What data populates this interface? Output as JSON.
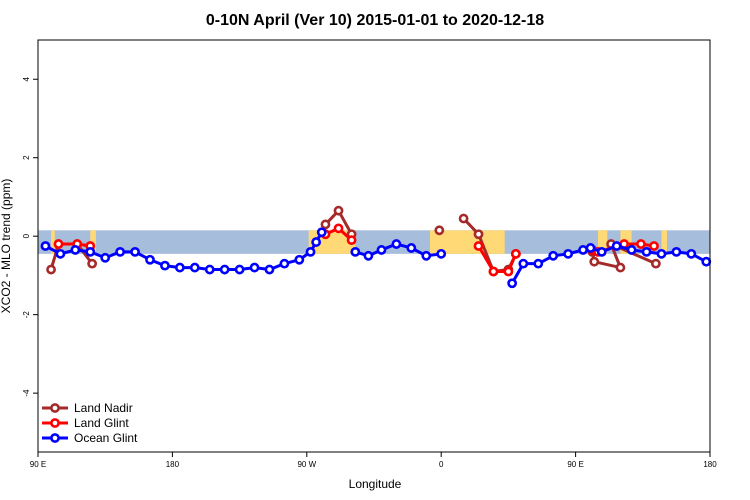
{
  "chart_data": {
    "type": "line",
    "title": "0-10N April (Ver 10)   2015-01-01 to 2020-12-18",
    "xlabel": "Longitude",
    "ylabel": "XCO2 - MLO trend (ppm)",
    "xlim": [
      90,
      450
    ],
    "ylim": [
      -5.5,
      5.0
    ],
    "x_ticks": [
      {
        "value": 90,
        "label": "90 E"
      },
      {
        "value": 162,
        "label": "180"
      },
      {
        "value": 234,
        "label": "90 W"
      },
      {
        "value": 306,
        "label": "0"
      },
      {
        "value": 378,
        "label": "90 E"
      },
      {
        "value": 450,
        "label": "180"
      }
    ],
    "y_ticks": [
      -4,
      -2,
      0,
      2,
      4
    ],
    "band": {
      "y_min": -0.45,
      "y_max": 0.15,
      "color": "#a6bddb",
      "land_color": "#fed976"
    },
    "land_segments": [
      [
        97,
        99
      ],
      [
        118,
        121
      ],
      [
        235,
        260
      ],
      [
        300,
        340
      ],
      [
        390,
        395
      ],
      [
        402,
        408
      ],
      [
        424,
        427
      ]
    ],
    "series": [
      {
        "name": "Land Nadir",
        "color": "#a52a2a",
        "segments": [
          [
            [
              97,
              -0.85
            ],
            [
              101,
              -0.2
            ],
            [
              111,
              -0.2
            ],
            [
              119,
              -0.7
            ]
          ],
          [
            [
              244,
              0.3
            ],
            [
              251,
              0.65
            ],
            [
              258,
              0.05
            ]
          ],
          [
            [
              305,
              0.15
            ]
          ],
          [
            [
              318,
              0.45
            ],
            [
              326,
              0.05
            ],
            [
              334,
              -0.9
            ],
            [
              342,
              -0.85
            ],
            [
              346,
              -0.45
            ]
          ],
          [
            [
              387,
              -0.4
            ],
            [
              388,
              -0.65
            ],
            [
              402,
              -0.8
            ],
            [
              397,
              -0.2
            ],
            [
              421,
              -0.7
            ]
          ]
        ]
      },
      {
        "name": "Land Glint",
        "color": "#ff0000",
        "segments": [
          [
            [
              101,
              -0.2
            ],
            [
              111,
              -0.2
            ],
            [
              118,
              -0.25
            ]
          ],
          [
            [
              244,
              0.05
            ],
            [
              251,
              0.2
            ],
            [
              258,
              -0.1
            ]
          ],
          [
            [
              326,
              -0.25
            ],
            [
              334,
              -0.9
            ],
            [
              342,
              -0.9
            ],
            [
              346,
              -0.45
            ]
          ],
          [
            [
              387,
              -0.35
            ],
            [
              390,
              -0.4
            ],
            [
              404,
              -0.2
            ],
            [
              413,
              -0.2
            ],
            [
              420,
              -0.25
            ]
          ]
        ]
      },
      {
        "name": "Ocean Glint",
        "color": "#0000ff",
        "segments": [
          [
            [
              94,
              -0.25
            ],
            [
              102,
              -0.45
            ],
            [
              110,
              -0.35
            ],
            [
              118,
              -0.4
            ],
            [
              126,
              -0.55
            ],
            [
              134,
              -0.4
            ],
            [
              142,
              -0.4
            ],
            [
              150,
              -0.6
            ],
            [
              158,
              -0.75
            ],
            [
              166,
              -0.8
            ],
            [
              174,
              -0.8
            ],
            [
              182,
              -0.85
            ],
            [
              190,
              -0.85
            ],
            [
              198,
              -0.85
            ],
            [
              206,
              -0.8
            ],
            [
              214,
              -0.85
            ],
            [
              222,
              -0.7
            ],
            [
              230,
              -0.6
            ],
            [
              236,
              -0.4
            ],
            [
              239,
              -0.15
            ],
            [
              242,
              0.1
            ]
          ],
          [
            [
              260,
              -0.4
            ],
            [
              267,
              -0.5
            ],
            [
              274,
              -0.35
            ],
            [
              282,
              -0.2
            ],
            [
              290,
              -0.3
            ],
            [
              298,
              -0.5
            ],
            [
              306,
              -0.45
            ]
          ],
          [
            [
              344,
              -1.2
            ],
            [
              350,
              -0.7
            ],
            [
              358,
              -0.7
            ],
            [
              366,
              -0.5
            ],
            [
              374,
              -0.45
            ],
            [
              382,
              -0.35
            ],
            [
              386,
              -0.3
            ],
            [
              392,
              -0.4
            ],
            [
              400,
              -0.25
            ],
            [
              408,
              -0.35
            ],
            [
              416,
              -0.4
            ],
            [
              424,
              -0.45
            ],
            [
              432,
              -0.4
            ],
            [
              440,
              -0.45
            ],
            [
              448,
              -0.65
            ]
          ]
        ]
      }
    ],
    "legend": {
      "position": "bottom-left",
      "entries": [
        "Land Nadir",
        "Land Glint",
        "Ocean Glint"
      ]
    }
  }
}
